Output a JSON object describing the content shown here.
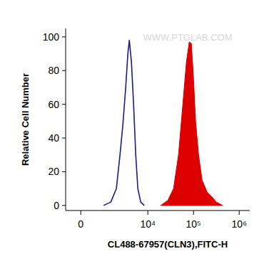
{
  "chart_data": {
    "type": "line",
    "x_label": "CL488-67957(CLN3),FITC-H",
    "y_label": "Relative Cell Number",
    "annotation": "WWW.PTGLAB.COM",
    "log": "x",
    "xlim": [
      -570,
      1700000
    ],
    "xticks": [
      0,
      {
        "value": 10000,
        "label": "10⁴"
      },
      {
        "value": 100000,
        "label": "10⁵"
      },
      {
        "value": 1000000,
        "label": "10⁶"
      }
    ],
    "ylim": [
      -3,
      105
    ],
    "yticks": [
      0,
      20,
      40,
      60,
      80,
      100
    ],
    "grid": false,
    "series": [
      {
        "type": "line",
        "color": "#1a1a8c",
        "x": [
          966,
          1470,
          1990,
          2410,
          2800,
          3240,
          3620,
          3900,
          4350,
          4850,
          5410,
          6020,
          6960,
          8330
        ],
        "values": [
          0,
          2,
          10,
          30,
          48,
          70,
          90,
          98,
          85,
          60,
          30,
          10,
          2,
          0
        ]
      },
      {
        "type": "area",
        "color": "#dd0000",
        "x": [
          19100,
          27400,
          36500,
          46900,
          58300,
          69800,
          80600,
          89800,
          100000,
          111000,
          129000,
          154000,
          198000,
          254000,
          316000,
          437000
        ],
        "values": [
          0,
          3,
          10,
          30,
          60,
          85,
          97,
          96,
          75,
          50,
          30,
          15,
          8,
          5,
          2,
          0
        ]
      }
    ]
  }
}
